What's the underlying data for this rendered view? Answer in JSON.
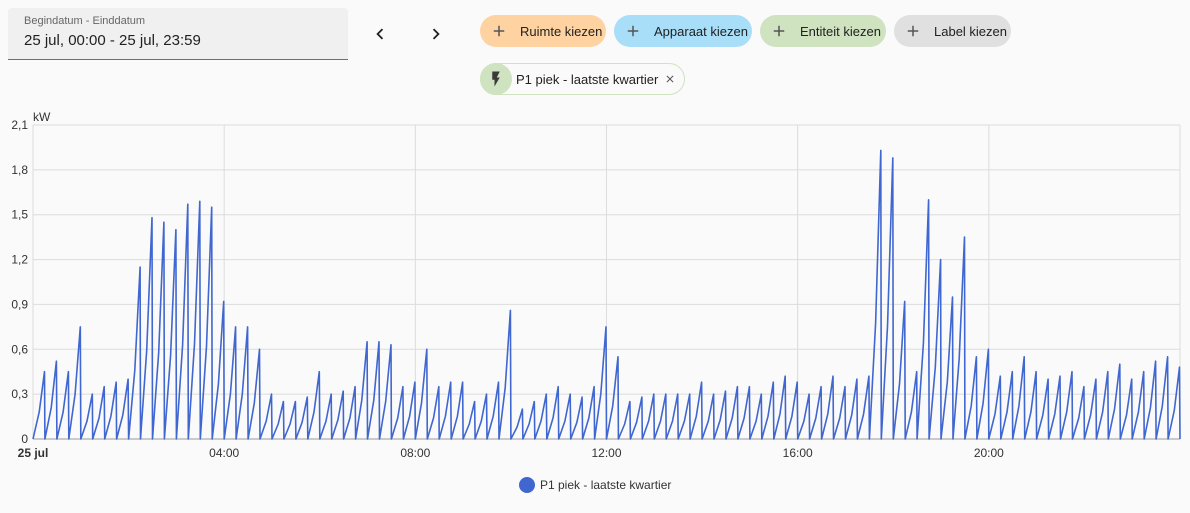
{
  "date_range": {
    "label": "Begindatum - Einddatum",
    "value": "25 jul, 00:00 - 25 jul, 23:59"
  },
  "nav": {
    "prev_icon": "chevron-left-icon",
    "next_icon": "chevron-right-icon"
  },
  "filters": [
    {
      "label": "Ruimte kiezen",
      "color": "#ffd3a1"
    },
    {
      "label": "Apparaat kiezen",
      "color": "#a9def9"
    },
    {
      "label": "Entiteit kiezen",
      "color": "#cfe3c0"
    },
    {
      "label": "Label kiezen",
      "color": "#e0e0e0"
    }
  ],
  "selected_entity": {
    "label": "P1 piek - laatste kwartier",
    "icon": "flash-icon"
  },
  "chart_data": {
    "type": "line",
    "unit": "kW",
    "ylim": [
      0,
      2.1
    ],
    "y_ticks": [
      "0",
      "0,3",
      "0,6",
      "0,9",
      "1,2",
      "1,5",
      "1,8",
      "2,1"
    ],
    "x_ticks": [
      "25 jul",
      "04:00",
      "08:00",
      "12:00",
      "16:00",
      "20:00"
    ],
    "xlim_hours": [
      0,
      24
    ],
    "grid": true,
    "legend_position": "bottom",
    "series": [
      {
        "name": "P1 piek - laatste kwartier",
        "color": "#4066d0",
        "peaks": [
          [
            0.25,
            0.45
          ],
          [
            0.5,
            0.52
          ],
          [
            0.75,
            0.45
          ],
          [
            1.0,
            0.75
          ],
          [
            1.25,
            0.3
          ],
          [
            1.5,
            0.35
          ],
          [
            1.75,
            0.38
          ],
          [
            2.0,
            0.4
          ],
          [
            2.25,
            1.15
          ],
          [
            2.5,
            1.48
          ],
          [
            2.75,
            1.45
          ],
          [
            3.0,
            1.4
          ],
          [
            3.25,
            1.57
          ],
          [
            3.5,
            1.59
          ],
          [
            3.75,
            1.55
          ],
          [
            4.0,
            0.92
          ],
          [
            4.25,
            0.75
          ],
          [
            4.5,
            0.75
          ],
          [
            4.75,
            0.6
          ],
          [
            5.0,
            0.3
          ],
          [
            5.25,
            0.25
          ],
          [
            5.5,
            0.25
          ],
          [
            5.75,
            0.28
          ],
          [
            6.0,
            0.45
          ],
          [
            6.25,
            0.3
          ],
          [
            6.5,
            0.32
          ],
          [
            6.75,
            0.35
          ],
          [
            7.0,
            0.65
          ],
          [
            7.25,
            0.65
          ],
          [
            7.5,
            0.63
          ],
          [
            7.75,
            0.35
          ],
          [
            8.0,
            0.38
          ],
          [
            8.25,
            0.6
          ],
          [
            8.5,
            0.35
          ],
          [
            8.75,
            0.38
          ],
          [
            9.0,
            0.38
          ],
          [
            9.25,
            0.25
          ],
          [
            9.5,
            0.3
          ],
          [
            9.75,
            0.38
          ],
          [
            10.0,
            0.86
          ],
          [
            10.25,
            0.2
          ],
          [
            10.5,
            0.25
          ],
          [
            10.75,
            0.3
          ],
          [
            11.0,
            0.35
          ],
          [
            11.25,
            0.3
          ],
          [
            11.5,
            0.28
          ],
          [
            11.75,
            0.35
          ],
          [
            12.0,
            0.75
          ],
          [
            12.25,
            0.55
          ],
          [
            12.5,
            0.25
          ],
          [
            12.75,
            0.28
          ],
          [
            13.0,
            0.3
          ],
          [
            13.25,
            0.3
          ],
          [
            13.5,
            0.3
          ],
          [
            13.75,
            0.3
          ],
          [
            14.0,
            0.38
          ],
          [
            14.25,
            0.3
          ],
          [
            14.5,
            0.32
          ],
          [
            14.75,
            0.35
          ],
          [
            15.0,
            0.35
          ],
          [
            15.25,
            0.3
          ],
          [
            15.5,
            0.38
          ],
          [
            15.75,
            0.42
          ],
          [
            16.0,
            0.38
          ],
          [
            16.25,
            0.3
          ],
          [
            16.5,
            0.35
          ],
          [
            16.75,
            0.42
          ],
          [
            17.0,
            0.35
          ],
          [
            17.25,
            0.4
          ],
          [
            17.5,
            0.42
          ],
          [
            17.75,
            1.93
          ],
          [
            18.0,
            1.88
          ],
          [
            18.25,
            0.92
          ],
          [
            18.5,
            0.45
          ],
          [
            18.75,
            1.6
          ],
          [
            19.0,
            1.2
          ],
          [
            19.25,
            0.95
          ],
          [
            19.5,
            1.35
          ],
          [
            19.75,
            0.55
          ],
          [
            20.0,
            0.6
          ],
          [
            20.25,
            0.42
          ],
          [
            20.5,
            0.45
          ],
          [
            20.75,
            0.55
          ],
          [
            21.0,
            0.45
          ],
          [
            21.25,
            0.4
          ],
          [
            21.5,
            0.42
          ],
          [
            21.75,
            0.45
          ],
          [
            22.0,
            0.35
          ],
          [
            22.25,
            0.4
          ],
          [
            22.5,
            0.45
          ],
          [
            22.75,
            0.5
          ],
          [
            23.0,
            0.4
          ],
          [
            23.25,
            0.45
          ],
          [
            23.5,
            0.52
          ],
          [
            23.75,
            0.55
          ],
          [
            24.0,
            0.48
          ]
        ]
      }
    ]
  }
}
